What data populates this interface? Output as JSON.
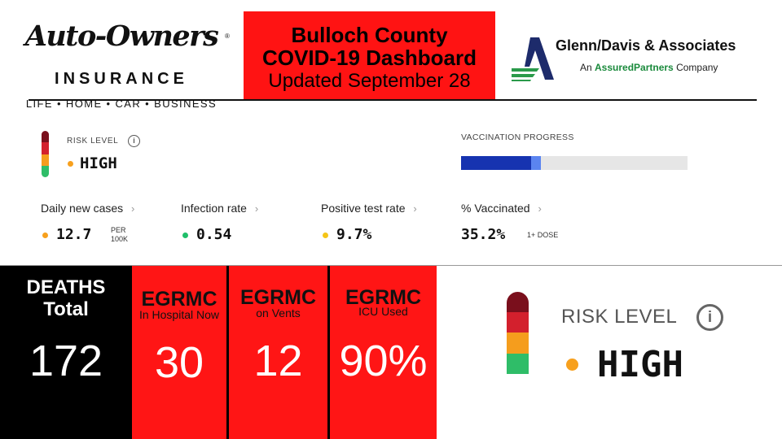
{
  "header": {
    "left_logo": {
      "name": "Auto-Owners",
      "registered": "®",
      "insurance": "INSURANCE",
      "tagline": "LIFE • HOME • CAR • BUSINESS"
    },
    "title_line1": "Bulloch County",
    "title_line2": "COVID-19 Dashboard",
    "updated": "Updated September 28",
    "right_logo": {
      "name": "Glenn/Davis & Associates",
      "sub_prefix": "An ",
      "sub_brand": "AssuredPartners",
      "sub_suffix": " Company"
    }
  },
  "risk": {
    "label": "RISK LEVEL",
    "info_icon": "info-icon",
    "value": "HIGH",
    "meter_colors": [
      "#7a0f1c",
      "#d3202d",
      "#f59d1d",
      "#2fbd68"
    ]
  },
  "vaccination": {
    "label": "VACCINATION PROGRESS",
    "fully_fraction": 0.31,
    "partial_fraction": 0.352
  },
  "metrics": [
    {
      "label": "Daily new cases",
      "value": "12.7",
      "unit_line1": "PER",
      "unit_line2": "100K",
      "dot_color": "#f7a01d"
    },
    {
      "label": "Infection rate",
      "value": "0.54",
      "unit_line1": "",
      "unit_line2": "",
      "dot_color": "#1fbf6a"
    },
    {
      "label": "Positive test rate",
      "value": "9.7%",
      "unit_line1": "",
      "unit_line2": "",
      "dot_color": "#f5c518"
    },
    {
      "label": "% Vaccinated",
      "value": "35.2%",
      "unit_line1": "1+ DOSE",
      "unit_line2": "",
      "dot_color": ""
    }
  ],
  "tiles": {
    "deaths": {
      "line1": "DEATHS",
      "line2": "Total",
      "value": "172"
    },
    "hospital": {
      "head": "EGRMC",
      "sub": "In Hospital Now",
      "value": "30"
    },
    "vents": {
      "head": "EGRMC",
      "sub": "on Vents",
      "value": "12"
    },
    "icu": {
      "head": "EGRMC",
      "sub": "ICU Used",
      "value": "90%"
    }
  },
  "colors": {
    "title_red": "#ff1313",
    "tile_red": "#ff1515",
    "vax_dark": "#1633b0",
    "vax_light": "#5b84f0",
    "risk_dot": "#f7a01d"
  }
}
